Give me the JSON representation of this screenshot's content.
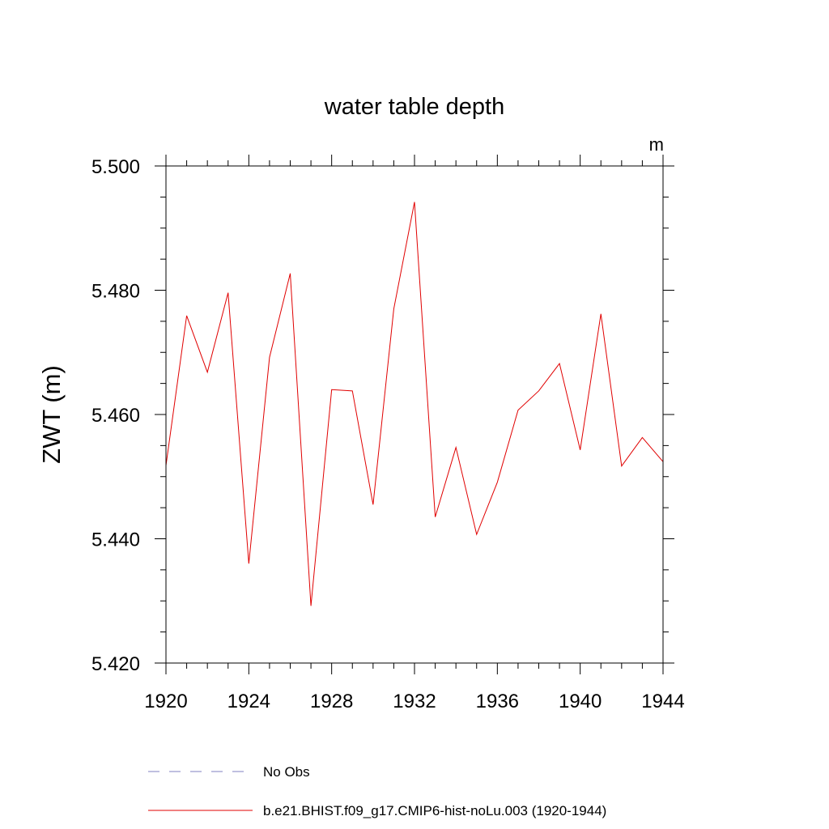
{
  "chart_data": {
    "type": "line",
    "title": "water table depth",
    "units_label": "m",
    "xlabel": "",
    "ylabel": "ZWT  (m)",
    "xlim": [
      1920,
      1944
    ],
    "ylim": [
      5.42,
      5.5
    ],
    "x_major_ticks": [
      "1920",
      "1924",
      "1928",
      "1932",
      "1936",
      "1940",
      "1944"
    ],
    "y_major_ticks": [
      "5.420",
      "5.440",
      "5.460",
      "5.480",
      "5.500"
    ],
    "x_minor_step": 1,
    "y_minor_step": 0.005,
    "grid": false,
    "legend_position": "bottom",
    "series": [
      {
        "name": "No Obs",
        "color": "#8080c0",
        "dash": "dashed",
        "x": [],
        "values": []
      },
      {
        "name": "b.e21.BHIST.f09_g17.CMIP6-hist-noLu.003 (1920-1944)",
        "color": "#e00000",
        "dash": "solid",
        "x": [
          1920,
          1921,
          1922,
          1923,
          1924,
          1925,
          1926,
          1927,
          1928,
          1929,
          1930,
          1931,
          1932,
          1933,
          1934,
          1935,
          1936,
          1937,
          1938,
          1939,
          1940,
          1941,
          1942,
          1943,
          1944
        ],
        "values": [
          5.4518,
          5.4759,
          5.4668,
          5.4796,
          5.436,
          5.4692,
          5.4827,
          5.4292,
          5.464,
          5.4638,
          5.4455,
          5.477,
          5.4942,
          5.4435,
          5.4547,
          5.4407,
          5.4491,
          5.4607,
          5.4638,
          5.4682,
          5.4543,
          5.4762,
          5.4517,
          5.4563,
          5.4524
        ]
      }
    ]
  }
}
